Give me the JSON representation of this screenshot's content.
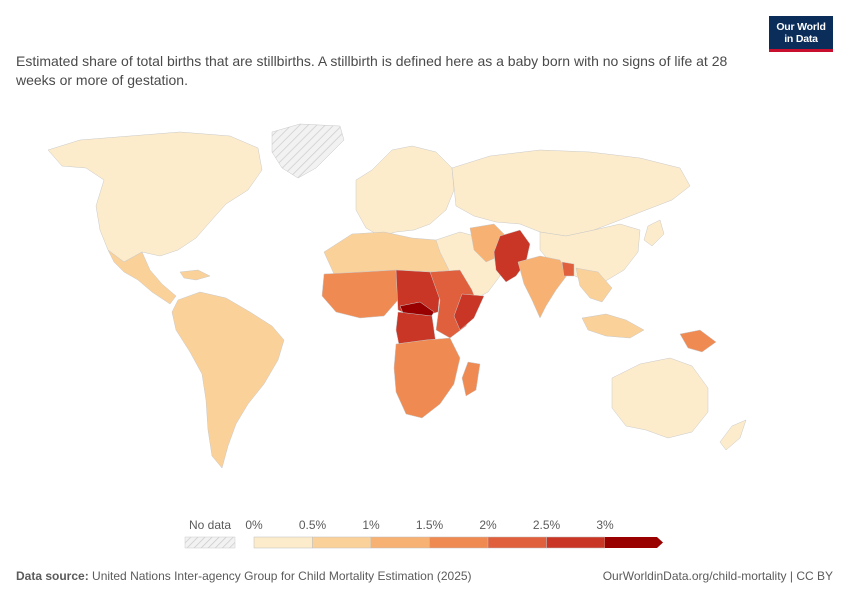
{
  "logo": {
    "line1": "Our World",
    "line2": "in Data"
  },
  "subtitle": "Estimated share of total births that are stillbirths. A stillbirth is defined here as a baby born with no signs of life at 28 weeks or more of gestation.",
  "legend": {
    "no_data_label": "No data",
    "ticks": [
      "0%",
      "0.5%",
      "1%",
      "1.5%",
      "2%",
      "2.5%",
      "3%"
    ],
    "colors": [
      "#fdeccb",
      "#fbd19a",
      "#f6b173",
      "#ef8a52",
      "#e05f3c",
      "#c93626",
      "#990000"
    ]
  },
  "footer": {
    "source_label": "Data source:",
    "source_text": "United Nations Inter-agency Group for Child Mortality Estimation (2025)",
    "link": "OurWorldinData.org/child-mortality | CC BY"
  }
}
